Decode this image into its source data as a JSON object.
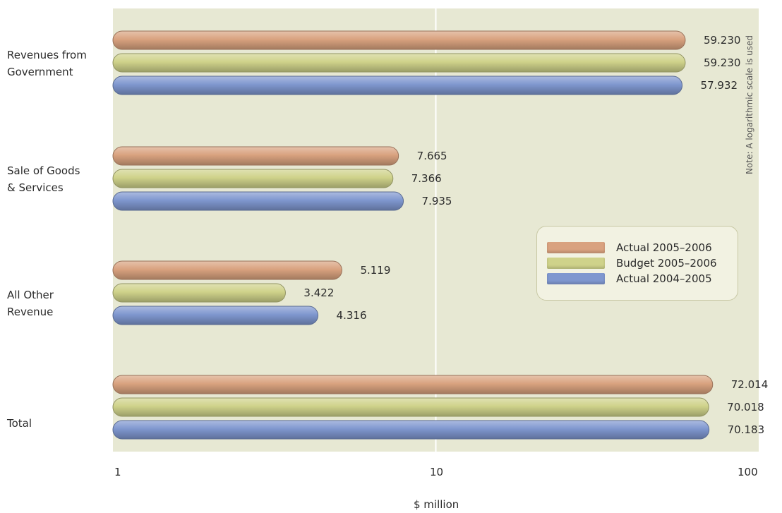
{
  "chart_data": {
    "type": "bar",
    "orientation": "horizontal",
    "categories": [
      "Revenues from\nGovernment",
      "Sale of Goods\n& Services",
      "All Other\nRevenue",
      "Total"
    ],
    "series": [
      {
        "name": "Actual 2005–2006",
        "values": [
          59.23,
          7.665,
          5.119,
          72.014
        ],
        "labels": [
          "59.230",
          "7.665",
          "5.119",
          "72.014"
        ],
        "color": "#d9a27f"
      },
      {
        "name": "Budget 2005–2006",
        "values": [
          59.23,
          7.366,
          3.422,
          70.018
        ],
        "labels": [
          "59.230",
          "7.366",
          "3.422",
          "70.018"
        ],
        "color": "#cfd28a"
      },
      {
        "name": "Actual 2004–2005",
        "values": [
          57.932,
          7.935,
          4.316,
          70.183
        ],
        "labels": [
          "57.932",
          "7.935",
          "4.316",
          "70.183"
        ],
        "color": "#7f97cf"
      }
    ],
    "xscale": "log",
    "xlim": [
      1,
      100
    ],
    "xticks": [
      1,
      10,
      100
    ],
    "xtick_labels": [
      "1",
      "10",
      "100"
    ],
    "xlabel": "$ million",
    "note": "Note: A logarithmic scale is used",
    "legend_position": "right-center",
    "plot_background": "#e7e8d3",
    "gridline_color": "#ffffff"
  }
}
